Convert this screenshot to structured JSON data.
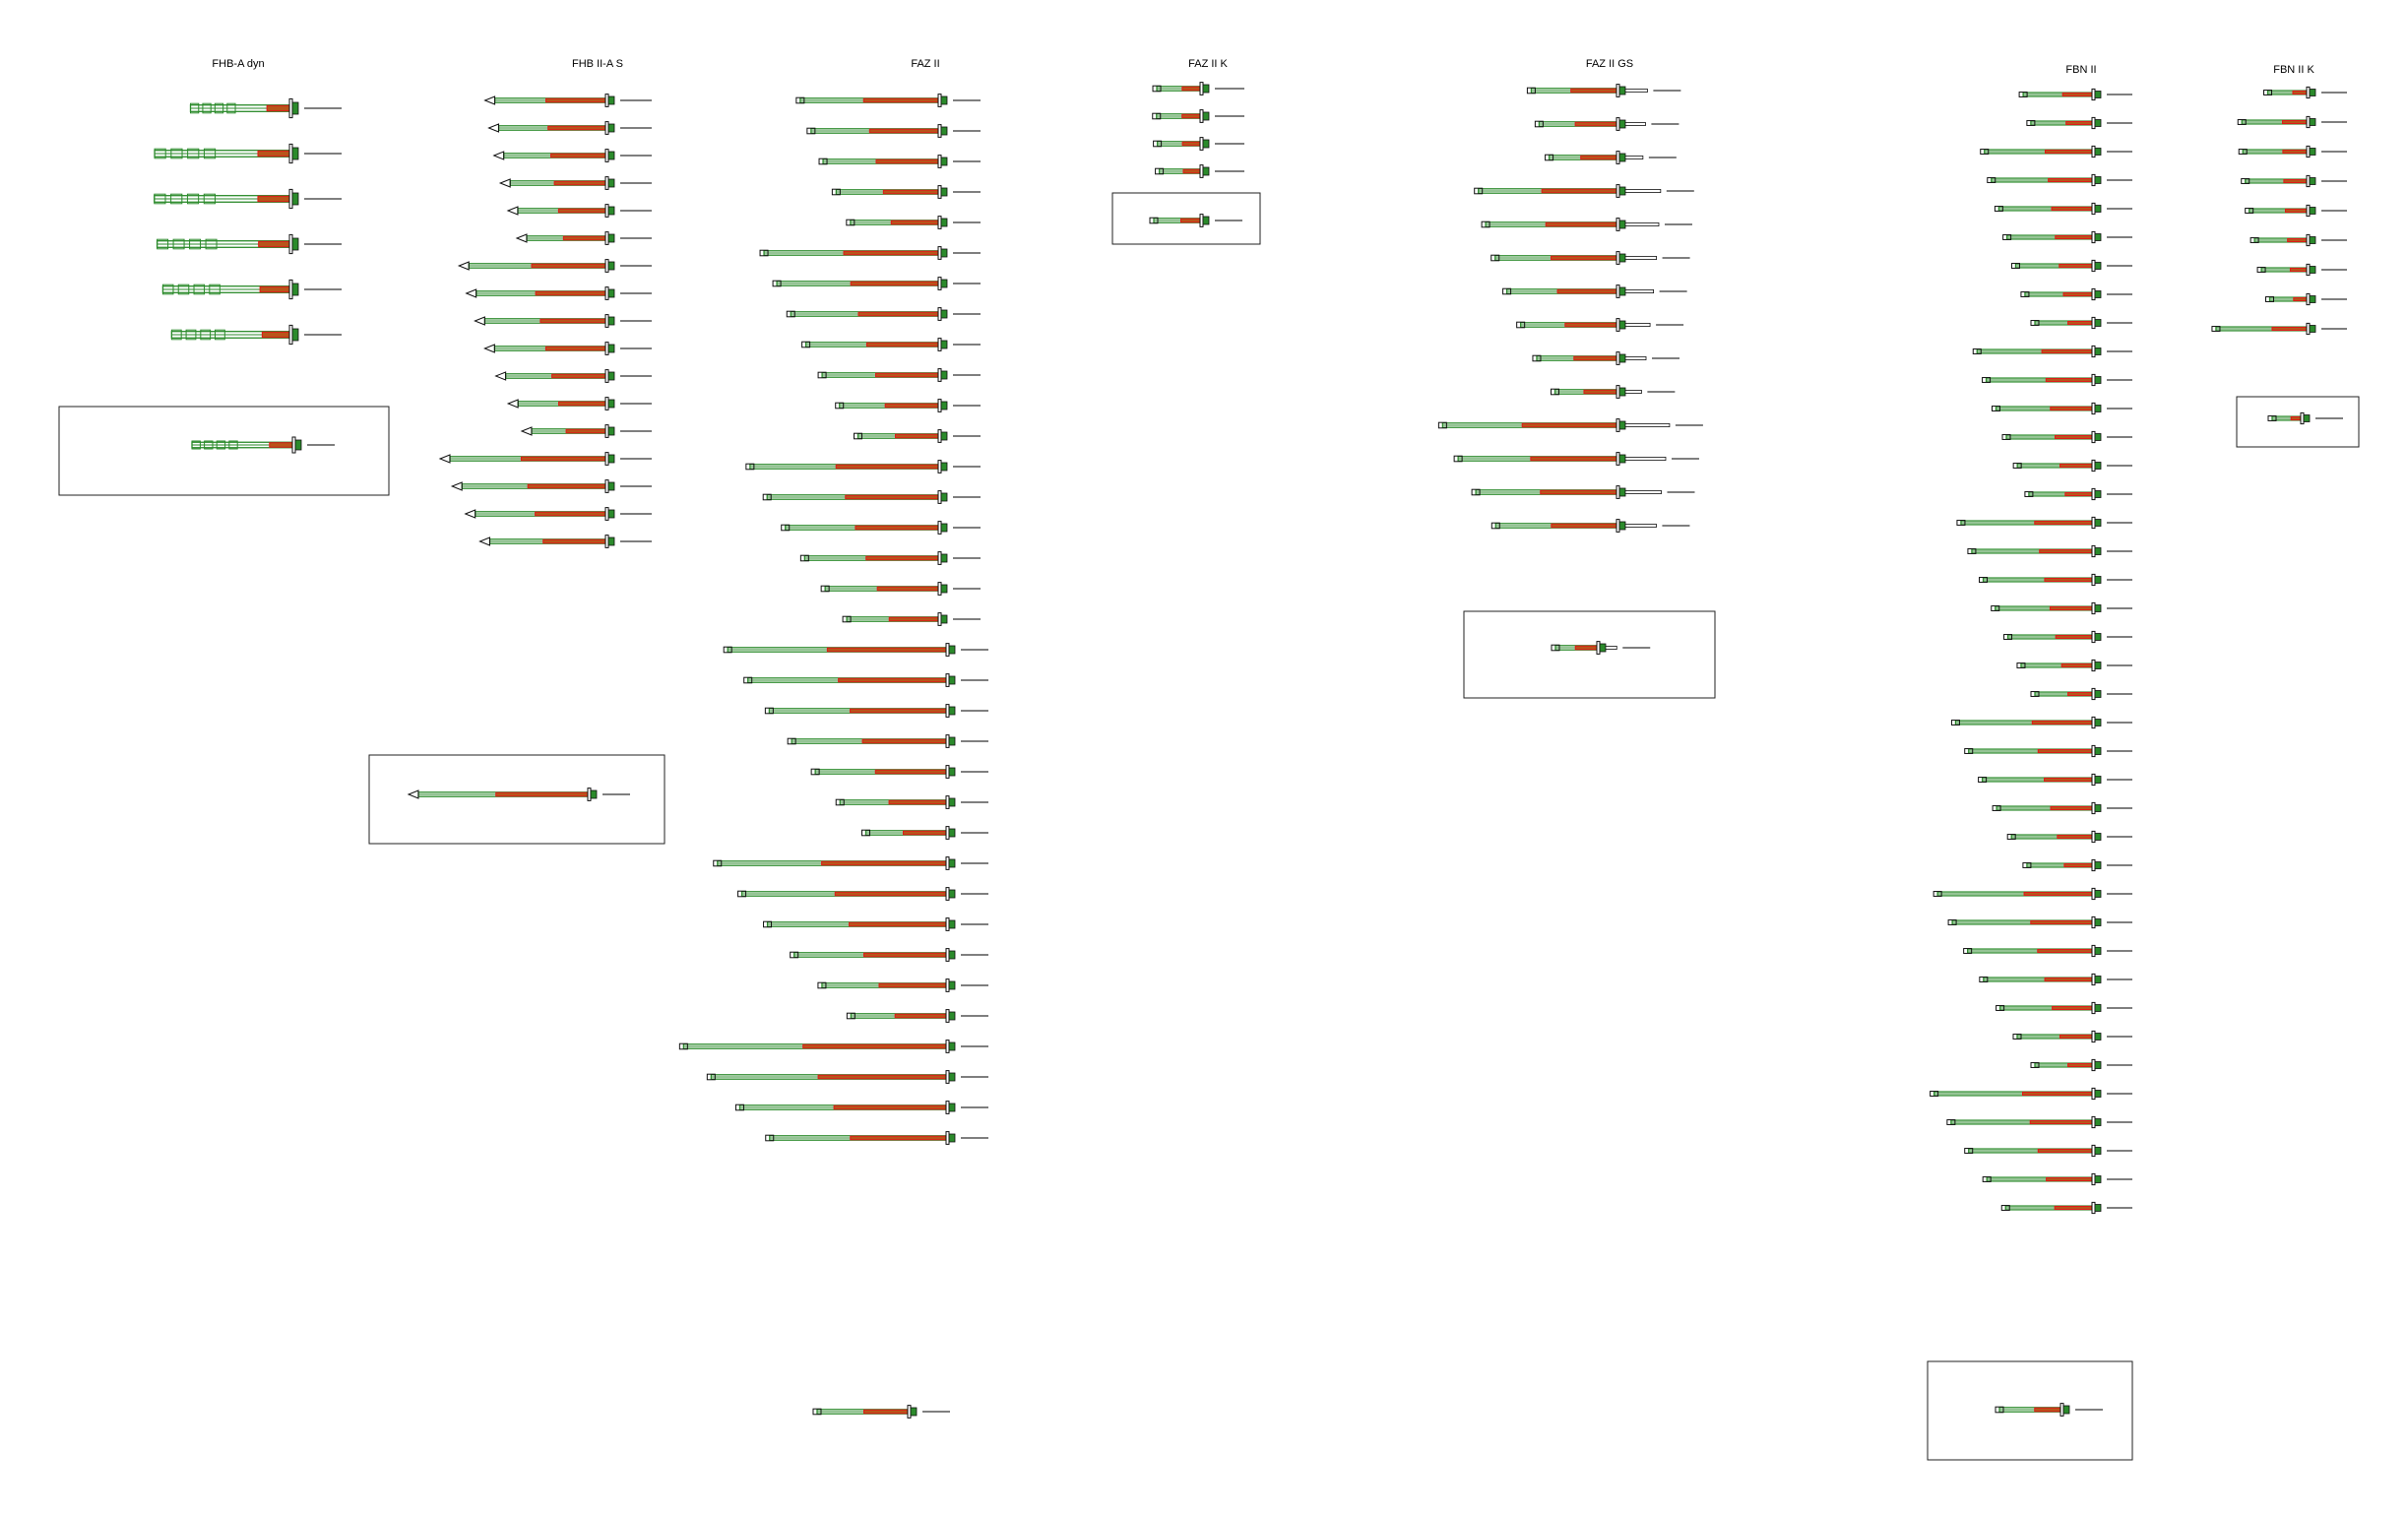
{
  "drawing": {
    "name": "anchor-catalog-sheet",
    "colors": {
      "sleeve": "#2b8a2b",
      "bolt_fill": "#b8551a",
      "bolt_outline": "#e01818",
      "steel_outline": "#111111",
      "paper": "#ffffff"
    }
  },
  "columns": [
    {
      "id": "fhb-a-dyn",
      "title": "FHB-A dyn",
      "style": "hook",
      "count": 6,
      "legend": true
    },
    {
      "id": "fhb-ii-a-s",
      "title": "FHB II-A S",
      "style": "cone",
      "count": 17,
      "legend": true
    },
    {
      "id": "faz-ii",
      "title": "FAZ II",
      "style": "wedge",
      "count": 35,
      "legend": true
    },
    {
      "id": "faz-ii-k",
      "title": "FAZ II K",
      "style": "wedge",
      "count": 4,
      "legend": true
    },
    {
      "id": "faz-ii-gs",
      "title": "FAZ II GS",
      "style": "gs",
      "count": 14,
      "legend": true
    },
    {
      "id": "fbn-ii",
      "title": "FBN II",
      "style": "wedge",
      "count": 40,
      "legend": true
    },
    {
      "id": "fbn-ii-k",
      "title": "FBN II K",
      "style": "wedge",
      "count": 9,
      "legend": true
    }
  ]
}
